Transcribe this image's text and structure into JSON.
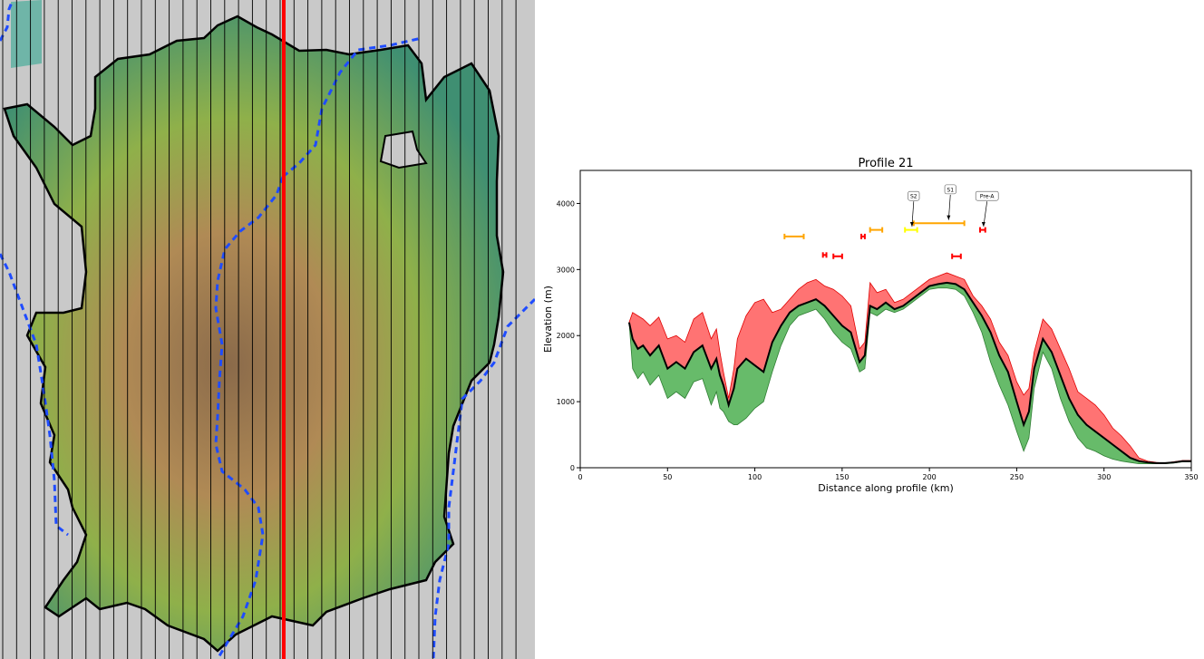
{
  "map": {
    "colors": {
      "background": "#c9c9c9",
      "lowland": "#3f8f72",
      "midland": "#8fb04a",
      "upland": "#b08a55",
      "highland": "#8a6a4a",
      "boundary": "#000000",
      "river": "#1f4cff",
      "selected_profile": "#ff0000",
      "lake": "#6fb5a8"
    },
    "profile_line_count": 38,
    "selected_profile_index": 21
  },
  "chart_data": {
    "type": "area",
    "title": "Profile 21",
    "xlabel": "Distance along profile (km)",
    "ylabel": "Elevation (m)",
    "xlim": [
      0,
      350
    ],
    "ylim": [
      0,
      4500
    ],
    "xticks": [
      0,
      50,
      100,
      150,
      200,
      250,
      300,
      350
    ],
    "yticks": [
      0,
      1000,
      2000,
      3000,
      4000
    ],
    "grid": false,
    "x": [
      28,
      30,
      33,
      36,
      40,
      45,
      50,
      55,
      60,
      65,
      70,
      75,
      78,
      80,
      82,
      85,
      88,
      90,
      95,
      100,
      105,
      110,
      115,
      120,
      125,
      130,
      135,
      140,
      145,
      150,
      155,
      160,
      163,
      166,
      170,
      175,
      180,
      185,
      190,
      195,
      200,
      205,
      210,
      215,
      220,
      225,
      230,
      235,
      240,
      245,
      250,
      254,
      257,
      260,
      265,
      270,
      275,
      280,
      285,
      290,
      295,
      300,
      305,
      310,
      315,
      320,
      325,
      330,
      335,
      340,
      345,
      350
    ],
    "series": [
      {
        "color": "#ff5a5a",
        "values": [
          2200,
          2350,
          2300,
          2250,
          2150,
          2280,
          1950,
          2000,
          1900,
          2250,
          2350,
          1950,
          2100,
          1750,
          1450,
          1050,
          1500,
          1950,
          2300,
          2500,
          2550,
          2350,
          2400,
          2550,
          2700,
          2800,
          2850,
          2750,
          2700,
          2600,
          2450,
          1800,
          1900,
          2800,
          2650,
          2700,
          2500,
          2550,
          2650,
          2750,
          2850,
          2900,
          2950,
          2900,
          2850,
          2600,
          2450,
          2250,
          1900,
          1700,
          1300,
          1100,
          1200,
          1750,
          2250,
          2100,
          1800,
          1500,
          1150,
          1050,
          950,
          800,
          600,
          480,
          330,
          150,
          100,
          80,
          70,
          90,
          110,
          110
        ]
      },
      {
        "color": "#000000",
        "values": [
          2200,
          1950,
          1800,
          1850,
          1700,
          1850,
          1500,
          1600,
          1500,
          1750,
          1850,
          1500,
          1650,
          1400,
          1250,
          950,
          1200,
          1500,
          1650,
          1550,
          1450,
          1900,
          2150,
          2350,
          2450,
          2500,
          2550,
          2450,
          2300,
          2150,
          2050,
          1600,
          1700,
          2450,
          2400,
          2500,
          2400,
          2450,
          2550,
          2650,
          2750,
          2780,
          2800,
          2780,
          2700,
          2500,
          2300,
          2050,
          1700,
          1450,
          1000,
          650,
          850,
          1500,
          1950,
          1750,
          1400,
          1050,
          800,
          650,
          550,
          450,
          350,
          250,
          150,
          100,
          80,
          70,
          70,
          80,
          100,
          100
        ]
      },
      {
        "color": "#4caf50",
        "values": [
          2200,
          1500,
          1350,
          1450,
          1250,
          1400,
          1050,
          1150,
          1050,
          1300,
          1350,
          950,
          1150,
          900,
          850,
          700,
          650,
          650,
          750,
          900,
          1000,
          1450,
          1850,
          2150,
          2300,
          2350,
          2400,
          2250,
          2050,
          1900,
          1800,
          1450,
          1500,
          2350,
          2300,
          2400,
          2350,
          2400,
          2500,
          2600,
          2700,
          2720,
          2720,
          2700,
          2600,
          2350,
          2050,
          1600,
          1250,
          950,
          550,
          250,
          450,
          1200,
          1750,
          1500,
          1050,
          700,
          450,
          300,
          250,
          180,
          130,
          100,
          80,
          60,
          60,
          60,
          60,
          70,
          90,
          90
        ]
      }
    ],
    "period_bars": [
      {
        "x0": 117,
        "x1": 128,
        "y": 3500,
        "color": "#ffa500"
      },
      {
        "x0": 166,
        "x1": 173,
        "y": 3600,
        "color": "#ffa500"
      },
      {
        "x0": 161,
        "x1": 163,
        "y": 3500,
        "color": "#ff0000"
      },
      {
        "x0": 139,
        "x1": 141,
        "y": 3220,
        "color": "#ff0000"
      },
      {
        "x0": 145,
        "x1": 150,
        "y": 3200,
        "color": "#ff0000"
      },
      {
        "x0": 191,
        "x1": 220,
        "y": 3700,
        "color": "#ffa500"
      },
      {
        "x0": 186,
        "x1": 193,
        "y": 3600,
        "color": "#ffff00"
      },
      {
        "x0": 213,
        "x1": 218,
        "y": 3200,
        "color": "#ff0000"
      },
      {
        "x0": 229,
        "x1": 232,
        "y": 3600,
        "color": "#ff0000"
      }
    ],
    "annotations": [
      {
        "text": "S2",
        "label_x": 191,
        "label_y": 4100,
        "arrow_x": 190,
        "arrow_y": 3650
      },
      {
        "text": "S1",
        "label_x": 212,
        "label_y": 4200,
        "arrow_x": 211,
        "arrow_y": 3750
      },
      {
        "text": "Pre-A",
        "label_x": 233,
        "label_y": 4100,
        "arrow_x": 231,
        "arrow_y": 3650
      }
    ]
  }
}
